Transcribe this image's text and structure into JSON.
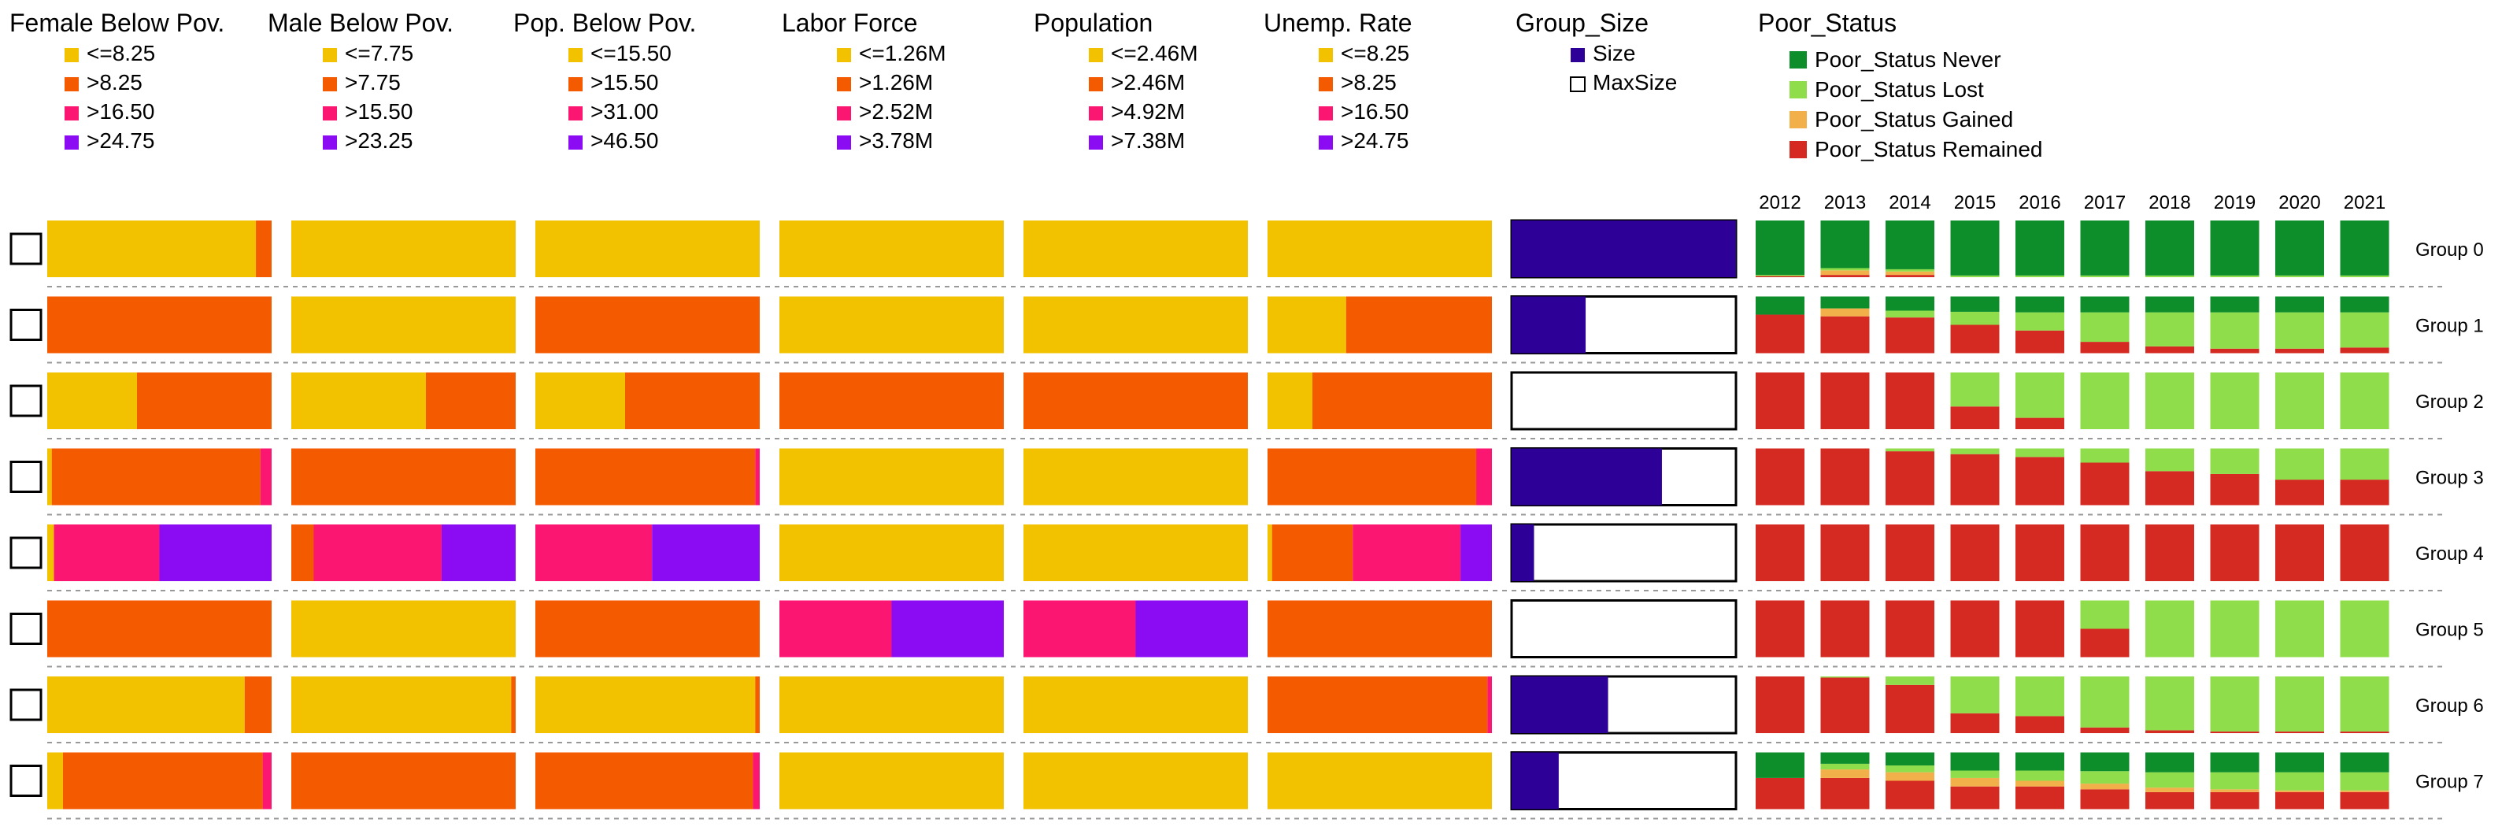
{
  "colors": {
    "yellow": "#F2C200",
    "orange": "#F45A00",
    "pink": "#FB1671",
    "purple": "#8B0CF3",
    "size": "#2D0097",
    "never": "#0D8E2A",
    "lost": "#8FDD4A",
    "gained": "#F2B04A",
    "remained": "#D52A22"
  },
  "legends": [
    {
      "title": "Female Below Pov.",
      "entries": [
        {
          "label": "<=8.25",
          "color": "yellow"
        },
        {
          "label": ">8.25",
          "color": "orange"
        },
        {
          "label": ">16.50",
          "color": "pink"
        },
        {
          "label": ">24.75",
          "color": "purple"
        }
      ]
    },
    {
      "title": "Male Below Pov.",
      "entries": [
        {
          "label": "<=7.75",
          "color": "yellow"
        },
        {
          "label": ">7.75",
          "color": "orange"
        },
        {
          "label": ">15.50",
          "color": "pink"
        },
        {
          "label": ">23.25",
          "color": "purple"
        }
      ]
    },
    {
      "title": "Pop. Below Pov.",
      "entries": [
        {
          "label": "<=15.50",
          "color": "yellow"
        },
        {
          "label": ">15.50",
          "color": "orange"
        },
        {
          "label": ">31.00",
          "color": "pink"
        },
        {
          "label": ">46.50",
          "color": "purple"
        }
      ]
    },
    {
      "title": "Labor Force",
      "entries": [
        {
          "label": "<=1.26M",
          "color": "yellow"
        },
        {
          "label": ">1.26M",
          "color": "orange"
        },
        {
          "label": ">2.52M",
          "color": "pink"
        },
        {
          "label": ">3.78M",
          "color": "purple"
        }
      ]
    },
    {
      "title": "Population",
      "entries": [
        {
          "label": "<=2.46M",
          "color": "yellow"
        },
        {
          "label": ">2.46M",
          "color": "orange"
        },
        {
          "label": ">4.92M",
          "color": "pink"
        },
        {
          "label": ">7.38M",
          "color": "purple"
        }
      ]
    },
    {
      "title": "Unemp. Rate",
      "entries": [
        {
          "label": "<=8.25",
          "color": "yellow"
        },
        {
          "label": ">8.25",
          "color": "orange"
        },
        {
          "label": ">16.50",
          "color": "pink"
        },
        {
          "label": ">24.75",
          "color": "purple"
        }
      ]
    },
    {
      "title": "Group_Size",
      "entries": [
        {
          "label": "Size",
          "color": "size"
        },
        {
          "label": "MaxSize",
          "color": "white"
        }
      ]
    },
    {
      "title": "Poor_Status",
      "entries": [
        {
          "label": "Poor_Status Never",
          "color": "never"
        },
        {
          "label": "Poor_Status Lost",
          "color": "lost"
        },
        {
          "label": "Poor_Status Gained",
          "color": "gained"
        },
        {
          "label": "Poor_Status Remained",
          "color": "remained"
        }
      ]
    }
  ],
  "chart_data": {
    "type": "bar",
    "title": "",
    "stacked_share_order": [
      "<= lowest bin",
      "> bin 2",
      "> bin 3",
      "> bin 4"
    ],
    "years": [
      "2012",
      "2013",
      "2014",
      "2015",
      "2016",
      "2017",
      "2018",
      "2019",
      "2020",
      "2021"
    ],
    "status_order": [
      "remained",
      "gained",
      "lost",
      "never"
    ],
    "groups": [
      {
        "label": "Group 0",
        "size_fraction": 1.0,
        "female": [
          0.93,
          0.07,
          0,
          0
        ],
        "male": [
          1,
          0,
          0,
          0
        ],
        "pop": [
          1,
          0,
          0,
          0
        ],
        "labor": [
          1,
          0,
          0,
          0
        ],
        "population": [
          1,
          0,
          0,
          0
        ],
        "unemp": [
          1,
          0,
          0,
          0
        ],
        "status": [
          [
            0.02,
            0,
            0.02,
            0.96
          ],
          [
            0.04,
            0.08,
            0.04,
            0.84
          ],
          [
            0.04,
            0.06,
            0.04,
            0.86
          ],
          [
            0,
            0,
            0.03,
            0.97
          ],
          [
            0,
            0,
            0.03,
            0.97
          ],
          [
            0,
            0,
            0.03,
            0.97
          ],
          [
            0,
            0,
            0.03,
            0.97
          ],
          [
            0,
            0,
            0.03,
            0.97
          ],
          [
            0,
            0,
            0.03,
            0.97
          ],
          [
            0,
            0,
            0.03,
            0.97
          ]
        ]
      },
      {
        "label": "Group 1",
        "size_fraction": 0.33,
        "female": [
          0,
          1,
          0,
          0
        ],
        "male": [
          1,
          0,
          0,
          0
        ],
        "pop": [
          0,
          1,
          0,
          0
        ],
        "labor": [
          1,
          0,
          0,
          0
        ],
        "population": [
          1,
          0,
          0,
          0
        ],
        "unemp": [
          0.35,
          0.65,
          0,
          0
        ],
        "status": [
          [
            0.68,
            0,
            0,
            0.32
          ],
          [
            0.65,
            0.14,
            0,
            0.21
          ],
          [
            0.63,
            0,
            0.12,
            0.25
          ],
          [
            0.5,
            0,
            0.23,
            0.27
          ],
          [
            0.4,
            0,
            0.32,
            0.28
          ],
          [
            0.2,
            0,
            0.52,
            0.28
          ],
          [
            0.12,
            0,
            0.6,
            0.28
          ],
          [
            0.08,
            0,
            0.64,
            0.28
          ],
          [
            0.08,
            0,
            0.64,
            0.28
          ],
          [
            0.1,
            0,
            0.62,
            0.28
          ]
        ]
      },
      {
        "label": "Group 2",
        "size_fraction": 0.0,
        "female": [
          0.4,
          0.6,
          0,
          0
        ],
        "male": [
          0.6,
          0.4,
          0,
          0
        ],
        "pop": [
          0.4,
          0.6,
          0,
          0
        ],
        "labor": [
          0,
          1,
          0,
          0
        ],
        "population": [
          0,
          1,
          0,
          0
        ],
        "unemp": [
          0.2,
          0.8,
          0,
          0
        ],
        "status": [
          [
            1,
            0,
            0,
            0
          ],
          [
            1,
            0,
            0,
            0
          ],
          [
            1,
            0,
            0,
            0
          ],
          [
            0.4,
            0,
            0.6,
            0
          ],
          [
            0.2,
            0,
            0.8,
            0
          ],
          [
            0,
            0,
            1,
            0
          ],
          [
            0,
            0,
            1,
            0
          ],
          [
            0,
            0,
            1,
            0
          ],
          [
            0,
            0,
            1,
            0
          ],
          [
            0,
            0,
            1,
            0
          ]
        ]
      },
      {
        "label": "Group 3",
        "size_fraction": 0.67,
        "female": [
          0.02,
          0.93,
          0.05,
          0
        ],
        "male": [
          0,
          1,
          0,
          0
        ],
        "pop": [
          0,
          0.98,
          0.02,
          0
        ],
        "labor": [
          1,
          0,
          0,
          0
        ],
        "population": [
          1,
          0,
          0,
          0
        ],
        "unemp": [
          0,
          0.93,
          0.07,
          0
        ],
        "status": [
          [
            1,
            0,
            0,
            0
          ],
          [
            1,
            0,
            0,
            0
          ],
          [
            0.95,
            0,
            0.05,
            0
          ],
          [
            0.9,
            0,
            0.1,
            0
          ],
          [
            0.85,
            0,
            0.15,
            0
          ],
          [
            0.75,
            0,
            0.25,
            0
          ],
          [
            0.6,
            0,
            0.4,
            0
          ],
          [
            0.55,
            0,
            0.45,
            0
          ],
          [
            0.45,
            0,
            0.55,
            0
          ],
          [
            0.45,
            0,
            0.55,
            0
          ]
        ]
      },
      {
        "label": "Group 4",
        "size_fraction": 0.1,
        "female": [
          0.03,
          0,
          0.47,
          0.5
        ],
        "male": [
          0,
          0.1,
          0.57,
          0.33
        ],
        "pop": [
          0,
          0,
          0.52,
          0.48
        ],
        "labor": [
          1,
          0,
          0,
          0
        ],
        "population": [
          1,
          0,
          0,
          0
        ],
        "unemp": [
          0.02,
          0.36,
          0.48,
          0.14
        ],
        "status": [
          [
            1,
            0,
            0,
            0
          ],
          [
            1,
            0,
            0,
            0
          ],
          [
            1,
            0,
            0,
            0
          ],
          [
            1,
            0,
            0,
            0
          ],
          [
            1,
            0,
            0,
            0
          ],
          [
            1,
            0,
            0,
            0
          ],
          [
            1,
            0,
            0,
            0
          ],
          [
            1,
            0,
            0,
            0
          ],
          [
            1,
            0,
            0,
            0
          ],
          [
            1,
            0,
            0,
            0
          ]
        ]
      },
      {
        "label": "Group 5",
        "size_fraction": 0.0,
        "female": [
          0,
          1,
          0,
          0
        ],
        "male": [
          1,
          0,
          0,
          0
        ],
        "pop": [
          0,
          1,
          0,
          0
        ],
        "labor": [
          0,
          0,
          0.5,
          0.5
        ],
        "population": [
          0,
          0,
          0.5,
          0.5
        ],
        "unemp": [
          0,
          1,
          0,
          0
        ],
        "status": [
          [
            1,
            0,
            0,
            0
          ],
          [
            1,
            0,
            0,
            0
          ],
          [
            1,
            0,
            0,
            0
          ],
          [
            1,
            0,
            0,
            0
          ],
          [
            1,
            0,
            0,
            0
          ],
          [
            0.5,
            0,
            0.5,
            0
          ],
          [
            0,
            0,
            1,
            0
          ],
          [
            0,
            0,
            1,
            0
          ],
          [
            0,
            0,
            1,
            0
          ],
          [
            0,
            0,
            1,
            0
          ]
        ]
      },
      {
        "label": "Group 6",
        "size_fraction": 0.43,
        "female": [
          0.88,
          0.12,
          0,
          0
        ],
        "male": [
          0.98,
          0.02,
          0,
          0
        ],
        "pop": [
          0.98,
          0.02,
          0,
          0
        ],
        "labor": [
          1,
          0,
          0,
          0
        ],
        "population": [
          1,
          0,
          0,
          0
        ],
        "unemp": [
          0,
          0.98,
          0.02,
          0
        ],
        "status": [
          [
            1,
            0,
            0,
            0
          ],
          [
            0.98,
            0,
            0.02,
            0
          ],
          [
            0.85,
            0,
            0.15,
            0
          ],
          [
            0.35,
            0,
            0.65,
            0
          ],
          [
            0.3,
            0,
            0.7,
            0
          ],
          [
            0.1,
            0,
            0.9,
            0
          ],
          [
            0.05,
            0,
            0.95,
            0
          ],
          [
            0.03,
            0,
            0.97,
            0
          ],
          [
            0.03,
            0,
            0.97,
            0
          ],
          [
            0.03,
            0,
            0.97,
            0
          ]
        ]
      },
      {
        "label": "Group 7",
        "size_fraction": 0.21,
        "female": [
          0.07,
          0.89,
          0.04,
          0
        ],
        "male": [
          0,
          1,
          0,
          0
        ],
        "pop": [
          0,
          0.97,
          0.03,
          0
        ],
        "labor": [
          1,
          0,
          0,
          0
        ],
        "population": [
          1,
          0,
          0,
          0
        ],
        "unemp": [
          1,
          0,
          0,
          0
        ],
        "status": [
          [
            0.55,
            0,
            0,
            0.45
          ],
          [
            0.55,
            0.15,
            0.1,
            0.2
          ],
          [
            0.5,
            0.15,
            0.12,
            0.23
          ],
          [
            0.4,
            0.15,
            0.13,
            0.32
          ],
          [
            0.4,
            0.1,
            0.18,
            0.32
          ],
          [
            0.35,
            0.1,
            0.22,
            0.33
          ],
          [
            0.3,
            0.08,
            0.27,
            0.35
          ],
          [
            0.3,
            0.05,
            0.3,
            0.35
          ],
          [
            0.3,
            0.03,
            0.32,
            0.35
          ],
          [
            0.3,
            0.03,
            0.32,
            0.35
          ]
        ]
      }
    ]
  }
}
